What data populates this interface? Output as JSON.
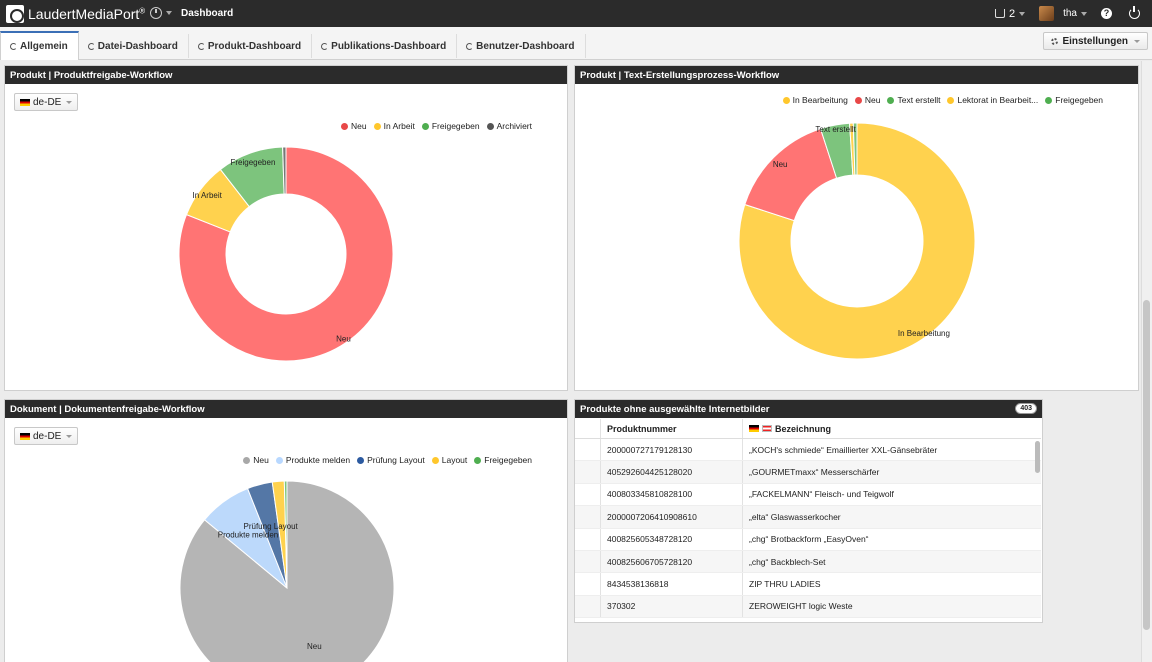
{
  "app": {
    "logo_text": "LaudertMediaPort",
    "logo_reg": "®",
    "page_title": "Dashboard",
    "notification_count": "2",
    "user_name": "tha",
    "help_glyph": "?"
  },
  "tabs": [
    {
      "label": "Allgemein",
      "active": true
    },
    {
      "label": "Datei-Dashboard",
      "active": false
    },
    {
      "label": "Produkt-Dashboard",
      "active": false
    },
    {
      "label": "Publikations-Dashboard",
      "active": false
    },
    {
      "label": "Benutzer-Dashboard",
      "active": false
    }
  ],
  "settings_label": "Einstellungen",
  "panels": {
    "p1": {
      "title": "Produkt | Produktfreigabe-Workflow",
      "language": "de-DE"
    },
    "p2": {
      "title": "Produkt | Text-Erstellungsprozess-Workflow"
    },
    "p3": {
      "title": "Dokument | Dokumentenfreigabe-Workflow",
      "language": "de-DE"
    },
    "p4": {
      "title": "Produkte ohne ausgewählte Internetbilder",
      "count": "403",
      "columns": [
        "Produktnummer",
        "Bezeichnung"
      ],
      "rows": [
        [
          "200000727179128130",
          "„KOCH's schmiede“ Emaillierter XXL-Gänsebräter"
        ],
        [
          "405292604425128020",
          "„GOURMETmaxx“ Messerschärfer"
        ],
        [
          "400803345810828100",
          "„FACKELMANN“ Fleisch- und Teigwolf"
        ],
        [
          "2000007206410908610",
          "„elta“ Glaswasserkocher"
        ],
        [
          "400825605348728120",
          "„chg“ Brotbackform „EasyOven“"
        ],
        [
          "400825606705728120",
          "„chg“ Backblech-Set"
        ],
        [
          "8434538136818",
          "ZIP THRU LADIES"
        ],
        [
          "370302",
          "ZEROWEIGHT logic Weste"
        ]
      ]
    }
  },
  "chart_data": [
    {
      "type": "pie",
      "variant": "donut",
      "title": "Produkt | Produktfreigabe-Workflow",
      "legend_position": "top-right",
      "categories": [
        "Neu",
        "In Arbeit",
        "Freigegeben",
        "Archiviert"
      ],
      "legend_labels": [
        "Neu",
        "In Arbeit",
        "Freigegeben",
        "Archiviert"
      ],
      "slice_labels": [
        "Neu",
        "In Arbeit",
        "Freigegeben",
        ""
      ],
      "legend_colors": [
        "#e84848",
        "#ffc72c",
        "#4fae50",
        "#555555"
      ],
      "slice_colors": [
        "#ff7474",
        "#ffd24e",
        "#7dc47d",
        "#777777"
      ],
      "values": [
        81,
        8.5,
        10,
        0.5
      ]
    },
    {
      "type": "pie",
      "variant": "donut",
      "title": "Produkt | Text-Erstellungsprozess-Workflow",
      "legend_position": "top-right",
      "categories": [
        "In Bearbeitung",
        "Neu",
        "Text erstellt",
        "Lektorat in Bearbeitung",
        "Freigegeben"
      ],
      "legend_labels": [
        "In Bearbeitung",
        "Neu",
        "Text erstellt",
        "Lektorat in Bearbeit...",
        "Freigegeben"
      ],
      "slice_labels": [
        "In Bearbeitung",
        "Neu",
        "Text erstellt",
        "",
        ""
      ],
      "legend_colors": [
        "#ffc72c",
        "#e84848",
        "#4fae50",
        "#ffc72c",
        "#4fae50"
      ],
      "slice_colors": [
        "#ffd24e",
        "#ff7474",
        "#7dc47d",
        "#ffd24e",
        "#7dc47d"
      ],
      "values": [
        80,
        15,
        4,
        0.5,
        0.5
      ]
    },
    {
      "type": "pie",
      "title": "Dokument | Dokumentenfreigabe-Workflow",
      "legend_position": "top-right",
      "categories": [
        "Neu",
        "Produkte melden",
        "Prüfung Layout",
        "Layout",
        "Freigegeben"
      ],
      "legend_labels": [
        "Neu",
        "Produkte melden",
        "Prüfung Layout",
        "Layout",
        "Freigegeben"
      ],
      "slice_labels": [
        "Neu",
        "Produkte melden",
        "Prüfung Layout",
        "",
        ""
      ],
      "legend_colors": [
        "#a8a8a8",
        "#b8d8ff",
        "#2c5aa0",
        "#ffc72c",
        "#4fae50"
      ],
      "slice_colors": [
        "#b5b5b5",
        "#bcd9fb",
        "#5477a6",
        "#ffd24e",
        "#7dc47d"
      ],
      "values": [
        86,
        8,
        3.8,
        1.8,
        0.4
      ]
    }
  ]
}
